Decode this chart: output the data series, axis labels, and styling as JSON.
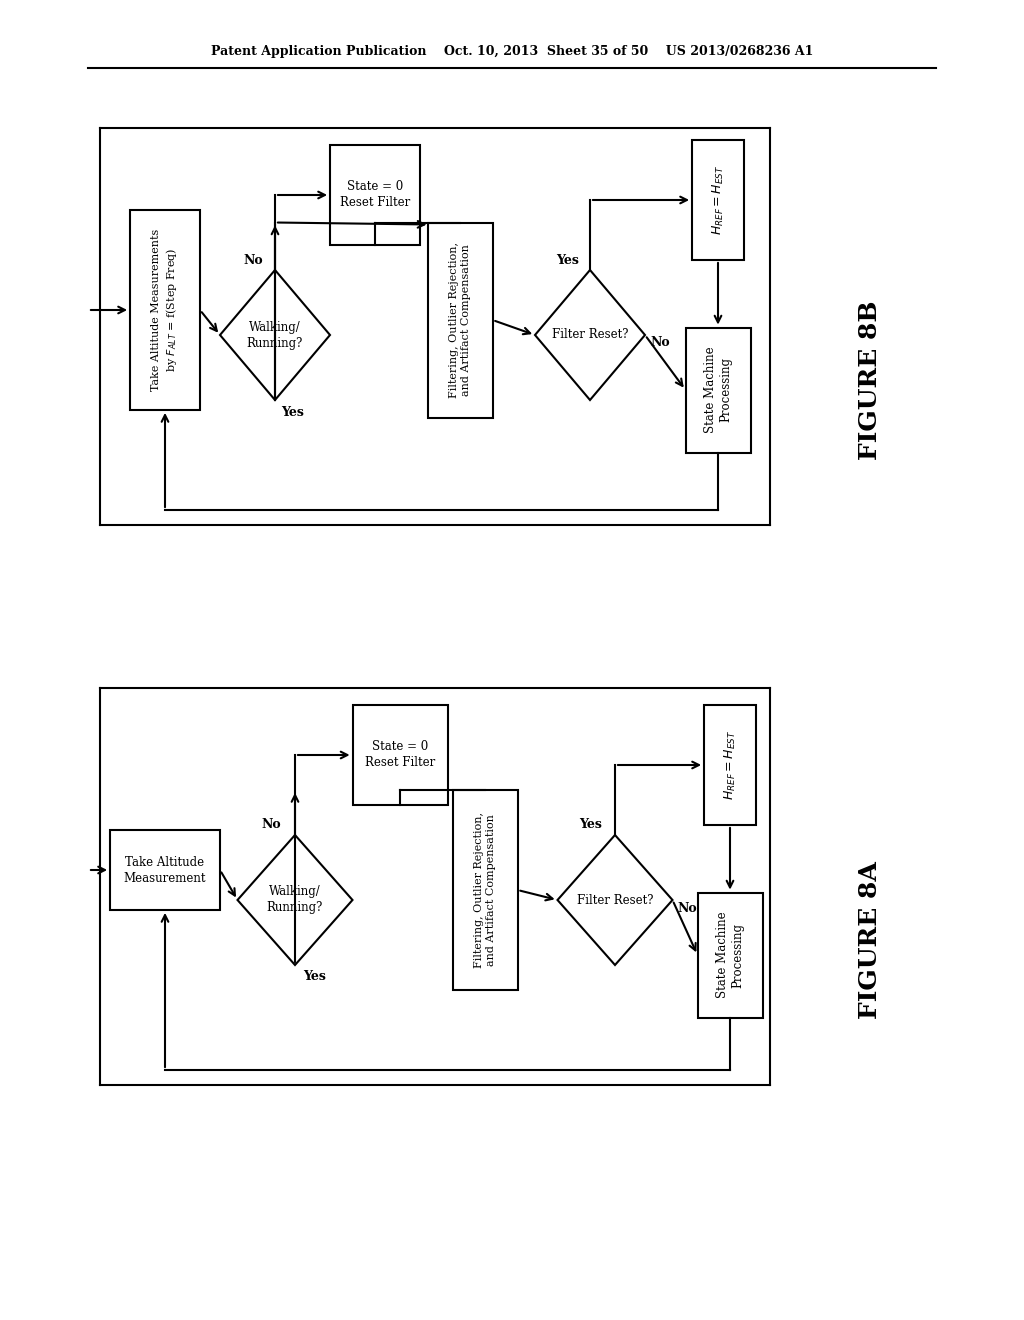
{
  "bg_color": "#ffffff",
  "header_left": "Patent Application Publication",
  "header_mid": "Oct. 10, 2013  Sheet 35 of 50",
  "header_right": "US 2013/0268236 A1",
  "figure_8b_label": "FIGURE 8B",
  "figure_8a_label": "FIGURE 8A"
}
